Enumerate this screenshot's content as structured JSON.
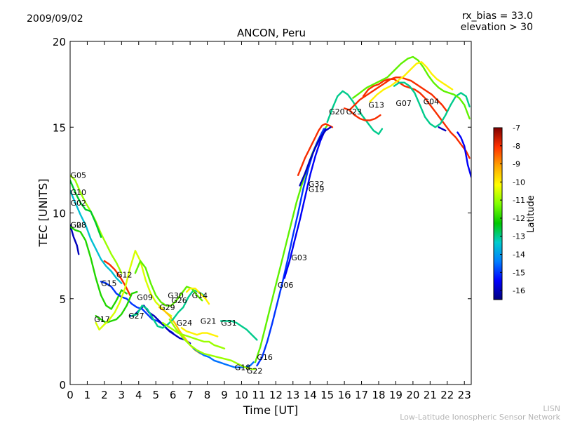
{
  "header": {
    "date": "2009/09/02",
    "rx_bias": "rx_bias = 33.0",
    "elevation": "elevation > 30",
    "title": "ANCON, Peru"
  },
  "footer": {
    "org_short": "LISN",
    "org_long": "Low-Latitude Ionospheric Sensor Network"
  },
  "chart_data": {
    "type": "line",
    "title": "ANCON, Peru",
    "xlabel": "Time [UT]",
    "ylabel": "TEC [UNITS]",
    "xlim": [
      0,
      23.4
    ],
    "ylim": [
      0,
      20
    ],
    "xticks": [
      0,
      1,
      2,
      3,
      4,
      5,
      6,
      7,
      8,
      9,
      10,
      11,
      12,
      13,
      14,
      15,
      16,
      17,
      18,
      19,
      20,
      21,
      22,
      23
    ],
    "yticks": [
      0,
      5,
      10,
      15,
      20
    ],
    "colorbar": {
      "label": "Latitude",
      "range": [
        -16.5,
        -7
      ],
      "ticks": [
        -7,
        -8,
        -9,
        -10,
        -11,
        -12,
        -13,
        -14,
        -15,
        -16
      ],
      "colors": [
        "#00007f",
        "#0000ff",
        "#007fff",
        "#00cccc",
        "#00c800",
        "#7fff00",
        "#ffff00",
        "#ffa500",
        "#ff3000",
        "#7f0000"
      ]
    },
    "series": [
      {
        "name": "G05",
        "lat": -11,
        "label_at": [
          0.02,
          12.2
        ],
        "x": [
          0,
          0.3,
          0.6,
          0.9,
          1.2,
          1.5,
          1.8,
          2.1,
          2.4,
          2.7,
          3.0
        ],
        "y": [
          12.2,
          11.9,
          11.2,
          10.6,
          10.1,
          9.5,
          8.8,
          8.2,
          7.6,
          7.1,
          6.5
        ]
      },
      {
        "name": "G10",
        "lat": -12.5,
        "label_at": [
          0.02,
          11.2
        ],
        "x": [
          0,
          0.3,
          0.6,
          0.9,
          1.2,
          1.5,
          1.8
        ],
        "y": [
          11.9,
          11.2,
          10.6,
          10.2,
          10.1,
          9.4,
          8.6
        ]
      },
      {
        "name": "G02",
        "lat": -13.5,
        "label_at": [
          0.02,
          10.6
        ],
        "x": [
          0,
          0.3,
          0.6,
          0.9,
          1.2,
          1.5,
          1.8,
          2.1,
          2.4,
          2.7,
          3.0
        ],
        "y": [
          11.3,
          10.6,
          9.9,
          9.3,
          8.5,
          7.9,
          7.3,
          6.9,
          6.6,
          6.2,
          5.9
        ]
      },
      {
        "name": "G28",
        "lat": -16,
        "label_at": [
          0.02,
          9.3
        ],
        "x": [
          0,
          0.2,
          0.4,
          0.5
        ],
        "y": [
          9.3,
          8.6,
          8.1,
          7.6
        ]
      },
      {
        "name": "G08",
        "lat": -12,
        "label_at": [
          0.02,
          9.3
        ],
        "x": [
          0,
          0.3,
          0.6,
          0.9,
          1.2,
          1.5,
          1.8,
          2.1,
          2.4,
          2.7,
          3.0,
          3.3
        ],
        "y": [
          9.2,
          9.0,
          8.9,
          8.4,
          7.4,
          6.2,
          5.2,
          4.6,
          4.4,
          4.9,
          5.5,
          5.3
        ]
      },
      {
        "name": "G12",
        "lat": -8,
        "label_at": [
          2.7,
          6.4
        ],
        "x": [
          2.0,
          2.3,
          2.6,
          2.9,
          3.2,
          3.5
        ],
        "y": [
          7.2,
          7.0,
          6.7,
          6.3,
          5.8,
          5.2
        ]
      },
      {
        "name": "G15",
        "lat": -15,
        "label_at": [
          1.8,
          5.9
        ],
        "x": [
          1.8,
          2.1,
          2.4,
          2.7,
          3.0,
          3.3,
          3.6,
          3.9,
          4.2,
          4.5,
          4.8,
          5.1,
          5.4,
          5.7,
          6.0
        ],
        "y": [
          6.0,
          5.9,
          5.7,
          5.3,
          5.1,
          5.0,
          4.7,
          4.5,
          4.4,
          4.1,
          3.8,
          3.7,
          3.5,
          3.2,
          3.0
        ]
      },
      {
        "name": "G17",
        "lat": -12,
        "label_at": [
          1.4,
          3.8
        ],
        "x": [
          1.5,
          1.8,
          2.1,
          2.4,
          2.7,
          3.0,
          3.3,
          3.6,
          3.9
        ],
        "y": [
          4.0,
          3.8,
          3.6,
          3.7,
          3.8,
          4.1,
          4.6,
          5.3,
          5.4
        ]
      },
      {
        "name": "G27",
        "lat": -10.5,
        "label_at": [
          3.4,
          4.0
        ],
        "x": [
          1.5,
          1.7,
          2.0,
          2.3,
          2.6,
          2.9,
          3.2,
          3.5,
          3.8,
          4.1,
          4.4,
          4.7,
          5.0,
          5.3,
          5.6,
          5.9
        ],
        "y": [
          3.6,
          3.2,
          3.5,
          3.8,
          4.2,
          4.8,
          5.6,
          6.8,
          7.8,
          7.2,
          6.1,
          5.3,
          4.8,
          4.5,
          4.2,
          4.0
        ]
      },
      {
        "name": "G09",
        "lat": -16,
        "label_at": [
          3.9,
          5.1
        ],
        "x": [
          3.5,
          3.7,
          4.0,
          4.3,
          4.6,
          4.9,
          5.2,
          5.5,
          5.8,
          6.1,
          6.4,
          6.7,
          7.0
        ],
        "y": [
          4.0,
          4.0,
          4.3,
          4.6,
          4.2,
          4.0,
          3.7,
          3.4,
          3.1,
          2.9,
          2.7,
          2.6,
          2.4
        ]
      },
      {
        "name": "G29",
        "lat": -9.5,
        "label_at": [
          5.2,
          4.5
        ],
        "x": [
          5.2,
          5.5,
          5.8,
          6.1,
          6.4,
          6.7,
          7.0,
          7.3,
          7.6
        ],
        "y": [
          4.5,
          4.3,
          4.0,
          3.6,
          3.1,
          2.7,
          2.3,
          2.0,
          1.8
        ]
      },
      {
        "name": "G30",
        "lat": -13,
        "label_at": [
          5.7,
          5.2
        ],
        "x": [
          3.6,
          3.9,
          4.2,
          4.5,
          4.8,
          5.1,
          5.4,
          5.7,
          6.0,
          6.3,
          6.6,
          6.9,
          7.2,
          7.5,
          7.8
        ],
        "y": [
          4.0,
          4.1,
          4.6,
          4.4,
          3.9,
          3.4,
          3.3,
          3.5,
          3.8,
          4.2,
          4.5,
          5.1,
          5.5,
          5.4,
          5.2
        ]
      },
      {
        "name": "G26",
        "lat": -11.5,
        "label_at": [
          5.9,
          4.9
        ],
        "x": [
          3.8,
          4.1,
          4.4,
          4.7,
          5.0,
          5.3,
          5.6,
          5.9,
          6.2,
          6.5,
          6.8,
          7.1,
          7.4,
          7.7
        ],
        "y": [
          6.5,
          7.2,
          6.8,
          5.9,
          5.2,
          4.8,
          4.6,
          4.6,
          4.9,
          5.3,
          5.7,
          5.6,
          5.2,
          4.9
        ]
      },
      {
        "name": "G14",
        "lat": -10,
        "label_at": [
          7.1,
          5.2
        ],
        "x": [
          6.8,
          7.0,
          7.3,
          7.6,
          7.9,
          8.1
        ],
        "y": [
          5.4,
          5.6,
          5.6,
          5.3,
          5.0,
          4.7
        ]
      },
      {
        "name": "G24",
        "lat": -11,
        "label_at": [
          6.2,
          3.6
        ],
        "x": [
          5.4,
          5.7,
          6.0,
          6.3,
          6.6,
          6.9,
          7.2,
          7.5,
          7.8,
          8.1,
          8.4,
          8.7,
          9.0
        ],
        "y": [
          3.6,
          3.4,
          3.2,
          3.0,
          2.9,
          2.8,
          2.7,
          2.6,
          2.5,
          2.5,
          2.3,
          2.2,
          2.1
        ]
      },
      {
        "name": "G21",
        "lat": -10,
        "label_at": [
          7.6,
          3.7
        ],
        "x": [
          6.5,
          6.8,
          7.1,
          7.4,
          7.7,
          8.0,
          8.3,
          8.6
        ],
        "y": [
          3.3,
          3.1,
          3.0,
          2.9,
          3.0,
          3.0,
          2.9,
          2.8
        ]
      },
      {
        "name": "G31",
        "lat": -13,
        "label_at": [
          8.8,
          3.6
        ],
        "x": [
          8.8,
          9.1,
          9.4,
          9.7,
          10.0,
          10.3,
          10.6,
          10.9
        ],
        "y": [
          3.7,
          3.7,
          3.7,
          3.6,
          3.4,
          3.2,
          2.9,
          2.6
        ]
      },
      {
        "name": "G18",
        "lat": -14.5,
        "label_at": [
          9.6,
          1.0
        ],
        "x": [
          7.2,
          7.5,
          7.8,
          8.1,
          8.4,
          8.7,
          9.0,
          9.3,
          9.6,
          9.9,
          10.2,
          10.5,
          10.7
        ],
        "y": [
          2.1,
          1.9,
          1.7,
          1.6,
          1.4,
          1.3,
          1.2,
          1.1,
          1.0,
          1.0,
          1.0,
          1.1,
          1.3
        ]
      },
      {
        "name": "G22",
        "lat": -11,
        "label_at": [
          10.3,
          0.8
        ],
        "x": [
          5.8,
          6.2,
          6.6,
          7.0,
          7.4,
          7.8,
          8.2,
          8.6,
          9.0,
          9.4,
          9.8,
          10.2,
          10.6,
          10.8
        ],
        "y": [
          3.8,
          3.2,
          2.7,
          2.3,
          2.0,
          1.8,
          1.7,
          1.6,
          1.5,
          1.4,
          1.2,
          1.0,
          0.9,
          0.9
        ]
      },
      {
        "name": "G16",
        "lat": -11.5,
        "label_at": [
          10.9,
          1.6
        ],
        "x": [
          10.8,
          11.1,
          11.4,
          11.7,
          12.0,
          12.3,
          12.6,
          12.9,
          13.2,
          13.5,
          13.8,
          14.1,
          14.4,
          14.7,
          15.0
        ],
        "y": [
          1.3,
          2.2,
          3.4,
          4.6,
          5.8,
          7.0,
          8.2,
          9.4,
          10.6,
          11.6,
          12.5,
          13.4,
          14.1,
          14.7,
          15.1
        ]
      },
      {
        "name": "G06",
        "lat": -15,
        "label_at": [
          12.1,
          5.8
        ],
        "x": [
          10.9,
          11.2,
          11.5,
          11.8,
          12.1,
          12.4,
          12.7,
          13.0,
          13.3,
          13.6,
          13.9,
          14.2,
          14.5,
          14.8
        ],
        "y": [
          1.1,
          1.6,
          2.5,
          3.6,
          4.8,
          6.0,
          7.3,
          8.7,
          10.0,
          11.4,
          12.6,
          13.6,
          14.3,
          14.9
        ]
      },
      {
        "name": "G03",
        "lat": -15.5,
        "label_at": [
          12.9,
          7.4
        ],
        "x": [
          12.5,
          12.8,
          13.1,
          13.4,
          13.7,
          14.0,
          14.3,
          14.6,
          14.9
        ],
        "y": [
          6.2,
          7.2,
          8.4,
          9.6,
          10.9,
          12.2,
          13.3,
          14.2,
          14.9
        ]
      },
      {
        "name": "G32",
        "lat": -8,
        "label_at": [
          13.9,
          11.7
        ],
        "x": [
          13.3,
          13.5,
          13.7,
          13.9,
          14.1,
          14.3,
          14.5,
          14.7,
          14.9,
          15.1,
          15.3
        ],
        "y": [
          12.2,
          12.7,
          13.2,
          13.6,
          14.0,
          14.4,
          14.8,
          15.1,
          15.2,
          15.1,
          15.0
        ]
      },
      {
        "name": "G19",
        "lat": -16,
        "label_at": [
          13.9,
          11.4
        ],
        "x": [
          13.4,
          13.7,
          14.0,
          14.3,
          14.6,
          14.9,
          15.2
        ],
        "y": [
          11.6,
          12.3,
          13.1,
          13.8,
          14.4,
          14.8,
          15.0
        ]
      },
      {
        "name": "G20",
        "lat": -13,
        "label_at": [
          15.1,
          15.9
        ],
        "x": [
          15.0,
          15.3,
          15.6,
          15.9,
          16.2,
          16.5,
          16.8,
          17.1,
          17.4,
          17.7,
          18.0,
          18.2
        ],
        "y": [
          15.3,
          16.1,
          16.8,
          17.1,
          16.9,
          16.5,
          16.0,
          15.6,
          15.2,
          14.8,
          14.6,
          14.9
        ]
      },
      {
        "name": "G23",
        "lat": -8,
        "label_at": [
          16.1,
          15.9
        ],
        "x": [
          16.0,
          16.3,
          16.6,
          16.9,
          17.2,
          17.5,
          17.8,
          18.1
        ],
        "y": [
          16.1,
          16.0,
          15.7,
          15.5,
          15.4,
          15.4,
          15.5,
          15.7
        ]
      },
      {
        "name": "G13",
        "lat": -8,
        "label_at": [
          17.4,
          16.3
        ],
        "x": [
          16.3,
          16.6,
          16.9,
          17.2,
          17.5,
          17.8,
          18.1,
          18.4,
          18.7,
          19.0,
          19.3,
          19.6,
          19.9,
          20.2,
          20.5,
          20.8,
          21.1,
          21.4,
          21.7,
          22.0
        ],
        "y": [
          16.0,
          16.3,
          16.6,
          16.8,
          17.0,
          17.2,
          17.4,
          17.6,
          17.8,
          17.9,
          17.9,
          17.8,
          17.7,
          17.5,
          17.3,
          17.1,
          16.9,
          16.6,
          16.3,
          15.9
        ]
      },
      {
        "name": "G07",
        "lat": -8,
        "label_at": [
          19.0,
          16.4
        ],
        "x": [
          17.1,
          17.4,
          17.7,
          18.0,
          18.3,
          18.6,
          18.9,
          19.2,
          19.5,
          19.8,
          20.1,
          20.4,
          20.7,
          21.0,
          21.3,
          21.6,
          21.9,
          22.2,
          22.5,
          22.8,
          23.1,
          23.3
        ],
        "y": [
          16.8,
          17.2,
          17.4,
          17.5,
          17.7,
          17.8,
          17.8,
          17.6,
          17.4,
          17.3,
          17.2,
          17.0,
          16.7,
          16.3,
          15.9,
          15.5,
          15.1,
          14.7,
          14.4,
          14.0,
          13.6,
          13.2
        ]
      },
      {
        "name": "G04",
        "lat": -13,
        "label_at": [
          20.6,
          16.5
        ],
        "x": [
          18.9,
          19.2,
          19.5,
          19.8,
          20.1,
          20.4,
          20.7,
          21.0,
          21.3,
          21.6,
          21.9,
          22.2,
          22.5,
          22.8,
          23.1,
          23.3
        ],
        "y": [
          17.4,
          17.6,
          17.6,
          17.4,
          17.0,
          16.3,
          15.6,
          15.2,
          15.0,
          15.2,
          15.7,
          16.3,
          16.8,
          17.0,
          16.8,
          16.2
        ]
      },
      {
        "name": "",
        "lat": -11.5,
        "x": [
          16.5,
          16.9,
          17.3,
          17.7,
          18.1,
          18.5,
          18.9,
          19.3,
          19.7,
          20.0,
          20.3,
          20.6,
          20.9,
          21.2,
          21.5,
          21.8,
          22.1,
          22.4,
          22.7,
          23.0,
          23.3
        ],
        "y": [
          16.7,
          17.0,
          17.3,
          17.5,
          17.7,
          17.9,
          18.3,
          18.7,
          19.0,
          19.1,
          18.9,
          18.5,
          18.0,
          17.6,
          17.3,
          17.1,
          17.0,
          16.9,
          16.7,
          16.3,
          15.5
        ]
      },
      {
        "name": "",
        "lat": -10,
        "x": [
          17.5,
          17.9,
          18.3,
          18.7,
          19.1,
          19.5,
          19.9,
          20.2,
          20.5,
          20.8,
          21.1,
          21.4,
          21.7,
          22.0,
          22.3
        ],
        "y": [
          16.5,
          16.9,
          17.2,
          17.4,
          17.7,
          18.0,
          18.4,
          18.7,
          18.8,
          18.5,
          18.1,
          17.8,
          17.6,
          17.4,
          17.2
        ]
      },
      {
        "name": "",
        "lat": -15.5,
        "x": [
          22.6,
          22.8,
          23.0,
          23.2,
          23.4
        ],
        "y": [
          14.7,
          14.4,
          13.9,
          12.8,
          12.1
        ]
      },
      {
        "name": "",
        "lat": -16,
        "x": [
          21.5,
          21.7,
          21.9
        ],
        "y": [
          15.0,
          14.9,
          14.8
        ]
      }
    ]
  }
}
